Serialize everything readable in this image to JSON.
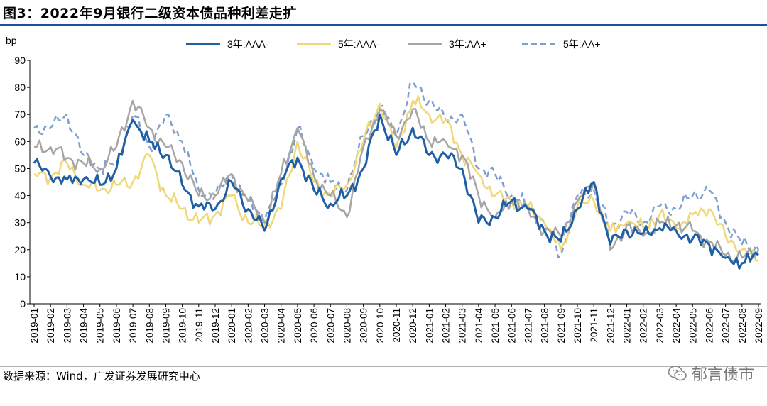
{
  "title": "图3：2022年9月银行二级资本债品种利差走扩",
  "source": "数据来源：Wind，广发证券发展研究中心",
  "watermark": "郁言债市",
  "watermark_icon": "wechat-icon",
  "colors": {
    "s1": "#1f5fa5",
    "s2": "#f0d878",
    "s3": "#a6a6a6",
    "s4": "#7f9fce",
    "title_rule": "#1f4e9a"
  },
  "chart_data": {
    "type": "line",
    "title": "",
    "ylabel": "bp",
    "xlabel": "",
    "ylim": [
      0,
      90
    ],
    "yticks": [
      0,
      10,
      20,
      30,
      40,
      50,
      60,
      70,
      80,
      90
    ],
    "grid": false,
    "legend_position": "top-center",
    "x_range": [
      "2019-01",
      "2022-09"
    ],
    "x": [
      "2019-01",
      "2019-02",
      "2019-03",
      "2019-04",
      "2019-05",
      "2019-06",
      "2019-07",
      "2019-08",
      "2019-09",
      "2019-10",
      "2019-11",
      "2019-12",
      "2020-01",
      "2020-02",
      "2020-03",
      "2020-04",
      "2020-05",
      "2020-06",
      "2020-07",
      "2020-08",
      "2020-09",
      "2020-10",
      "2020-11",
      "2020-12",
      "2021-01",
      "2021-02",
      "2021-03",
      "2021-04",
      "2021-05",
      "2021-06",
      "2021-07",
      "2021-08",
      "2021-09",
      "2021-10",
      "2021-11",
      "2021-12",
      "2022-01",
      "2022-02",
      "2022-03",
      "2022-04",
      "2022-05",
      "2022-06",
      "2022-07",
      "2022-08",
      "2022-09"
    ],
    "series": [
      {
        "name": "3年:AAA-",
        "style": "solid",
        "values": [
          52,
          47,
          46,
          46,
          44,
          50,
          68,
          60,
          55,
          44,
          36,
          35,
          45,
          35,
          27,
          46,
          54,
          42,
          37,
          40,
          50,
          70,
          55,
          65,
          55,
          55,
          50,
          30,
          32,
          38,
          35,
          27,
          23,
          35,
          45,
          22,
          27,
          26,
          28,
          27,
          24,
          22,
          17,
          15,
          18
        ]
      },
      {
        "name": "5年:AAA-",
        "style": "solid",
        "values": [
          48,
          47,
          52,
          44,
          42,
          44,
          45,
          55,
          40,
          35,
          30,
          33,
          40,
          30,
          29,
          35,
          60,
          45,
          40,
          44,
          60,
          74,
          58,
          75,
          70,
          68,
          55,
          48,
          40,
          38,
          36,
          30,
          20,
          36,
          38,
          27,
          30,
          28,
          33,
          28,
          33,
          35,
          25,
          20,
          16
        ]
      },
      {
        "name": "3年:AA+",
        "style": "solid",
        "values": [
          58,
          58,
          54,
          52,
          50,
          58,
          75,
          65,
          58,
          52,
          40,
          40,
          48,
          38,
          30,
          48,
          65,
          47,
          40,
          32,
          58,
          72,
          62,
          72,
          60,
          60,
          55,
          40,
          32,
          38,
          35,
          27,
          25,
          38,
          45,
          20,
          29,
          25,
          30,
          29,
          27,
          23,
          18,
          17,
          20
        ]
      },
      {
        "name": "5年:AA+",
        "style": "dashed",
        "values": [
          65,
          65,
          70,
          55,
          50,
          52,
          70,
          58,
          70,
          60,
          42,
          40,
          48,
          38,
          31,
          44,
          65,
          50,
          45,
          42,
          62,
          73,
          62,
          82,
          75,
          68,
          70,
          50,
          48,
          40,
          36,
          30,
          18,
          40,
          42,
          28,
          34,
          30,
          36,
          35,
          40,
          42,
          30,
          22,
          20
        ]
      }
    ]
  }
}
